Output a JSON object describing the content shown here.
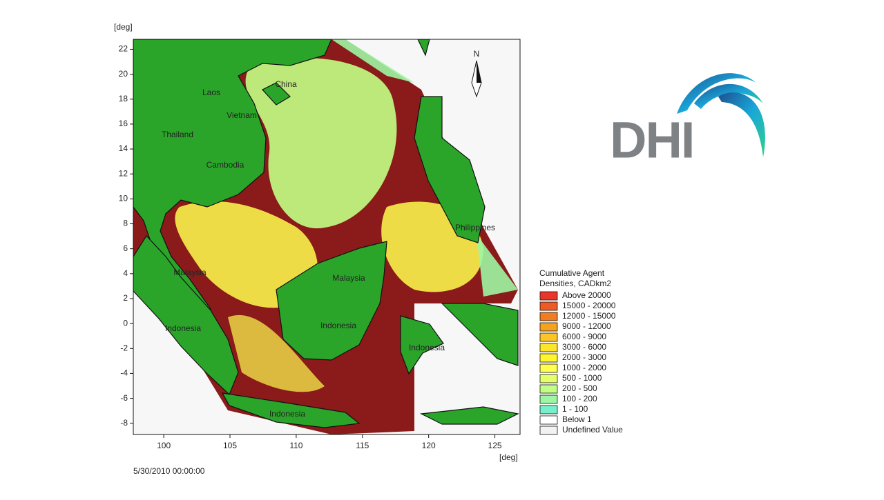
{
  "map": {
    "y_unit": "[deg]",
    "x_unit": "[deg]",
    "xlim": [
      97.7,
      126.9
    ],
    "ylim": [
      -8.9,
      22.8
    ],
    "xticks": [
      100,
      105,
      110,
      115,
      120,
      125
    ],
    "yticks": [
      -8,
      -6,
      -4,
      -2,
      0,
      2,
      4,
      6,
      8,
      10,
      12,
      14,
      16,
      18,
      20,
      22
    ],
    "compass": "N",
    "places": [
      "China",
      "Laos",
      "Vietnam",
      "Thailand",
      "Cambodia",
      "Philippines",
      "Malaysia",
      "Malaysia",
      "Indonesia",
      "Indonesia",
      "Indonesia",
      "Indonesia"
    ],
    "timestamp": "5/30/2010 00:00:00"
  },
  "legend": {
    "title": [
      "Cumulative Agent",
      "Densities, CADkm2"
    ],
    "entries": [
      {
        "label": "Above 20000",
        "color": "#e8362a"
      },
      {
        "label": "15000 - 20000",
        "color": "#ee5a24"
      },
      {
        "label": "12000 - 15000",
        "color": "#f07d22"
      },
      {
        "label": "9000 - 12000",
        "color": "#f5a21f"
      },
      {
        "label": "6000 - 9000",
        "color": "#fbc52a"
      },
      {
        "label": "3000 - 6000",
        "color": "#fde52c"
      },
      {
        "label": "2000 - 3000",
        "color": "#fff52d"
      },
      {
        "label": "1000 - 2000",
        "color": "#ffff50"
      },
      {
        "label": "500 - 1000",
        "color": "#e4ff6a"
      },
      {
        "label": "200 - 500",
        "color": "#c2ff85"
      },
      {
        "label": "100 - 200",
        "color": "#9cf6a2"
      },
      {
        "label": "1 - 100",
        "color": "#77efc9"
      },
      {
        "label": "Below 1",
        "color": "#ffffff"
      },
      {
        "label": "Undefined Value",
        "color": "#f2f2f2"
      }
    ]
  },
  "logo": {
    "text": "DHI"
  }
}
